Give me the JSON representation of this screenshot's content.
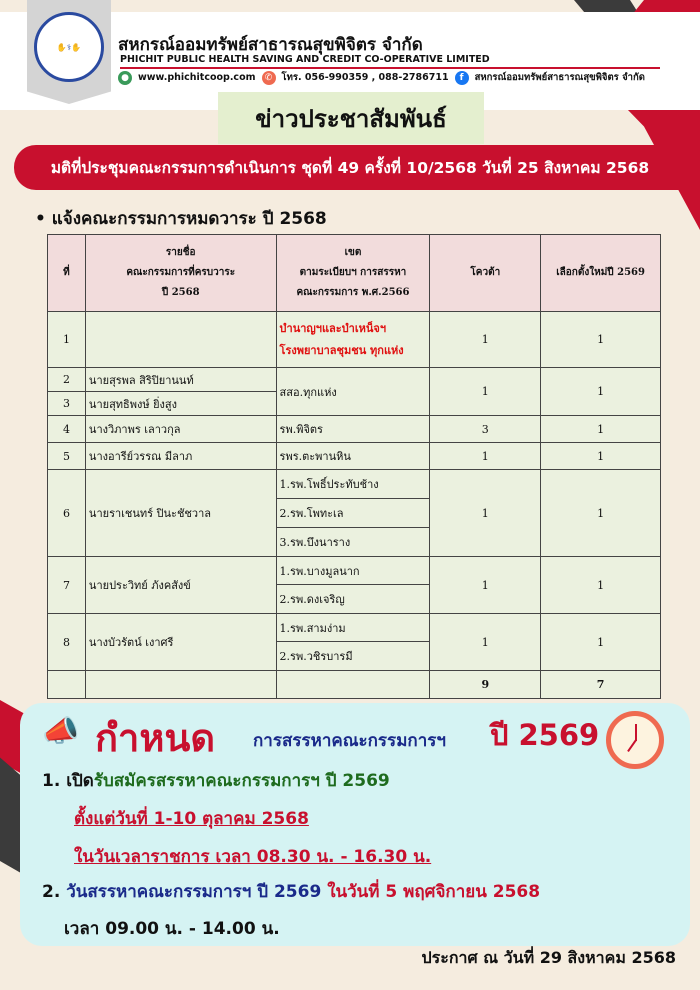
{
  "header": {
    "org_th": "สหกรณ์ออมทรัพย์สาธารณสุขพิจิตร จำกัด",
    "org_en": "PHICHIT PUBLIC HEALTH SAVING AND CREDIT CO-OPERATIVE LIMITED",
    "logo_text": "สหกรณ์ออมทรัพย์ สาธารณสุขพิจิตร จำกัด",
    "website": "www.phichitcoop.com",
    "phone": "โทร. 056-990359 , 088-2786711",
    "facebook": "สหกรณ์ออมทรัพย์สาธารณสุขพิจิตร จำกัด"
  },
  "title": "ข่าวประชาสัมพันธ์",
  "banner": "มติที่ประชุมคณะกรรมการดำเนินการ ชุดที่ 49 ครั้งที่ 10/2568 วันที่ 25 สิงหาคม 2568",
  "bullet": "• แจ้งคณะกรรมการหมดวาระ ปี 2568",
  "table": {
    "headers": [
      "ที่",
      "รายชื่อ\nคณะกรรมการที่ครบวาระ\nปี 2568",
      "เขต\nตามระเบียบฯ การสรรหา\nคณะกรรมการ พ.ศ.2566",
      "โควต้า",
      "เลือกตั้งใหม่ปี 2569"
    ],
    "rows": [
      {
        "no": "1",
        "names": [
          ""
        ],
        "zones": [
          "บำนาญฯและบำเหน็จฯ",
          "โรงพยาบาลชุมชน ทุกแห่ง"
        ],
        "quota": "1",
        "elect": "1"
      },
      {
        "no": [
          "2",
          "3"
        ],
        "names": [
          "นายสุรพล สิริปิยานนท์",
          "นายสุทธิพงษ์ ยิ่งสูง"
        ],
        "zones": [
          "สสอ.ทุกแห่ง"
        ],
        "quota": "1",
        "elect": "1"
      },
      {
        "no": "4",
        "names": [
          "นางวิภาพร เลาวกุล"
        ],
        "zones": [
          "รพ.พิจิตร"
        ],
        "quota": "3",
        "elect": "1"
      },
      {
        "no": "5",
        "names": [
          "นางอารีย์วรรณ มีลาภ"
        ],
        "zones": [
          "รพร.ตะพานหิน"
        ],
        "quota": "1",
        "elect": "1"
      },
      {
        "no": "6",
        "names": [
          "นายราเชนทร์ ปินะชัชวาล"
        ],
        "zones": [
          "1.รพ.โพธิ์ประทับช้าง",
          "2.รพ.โพทะเล",
          "3.รพ.บึงนาราง"
        ],
        "quota": "1",
        "elect": "1"
      },
      {
        "no": "7",
        "names": [
          "นายประวิทย์ ภังคสังข์"
        ],
        "zones": [
          "1.รพ.บางมูลนาก",
          "2.รพ.ดงเจริญ"
        ],
        "quota": "1",
        "elect": "1"
      },
      {
        "no": "8",
        "names": [
          "นางบัวรัตน์ เงาศรี"
        ],
        "zones": [
          "1.รพ.สามง่าม",
          "2.รพ.วชิรบารมี"
        ],
        "quota": "1",
        "elect": "1"
      }
    ],
    "total": {
      "quota": "9",
      "elect": "7"
    }
  },
  "schedule": {
    "heading": "กำหนด",
    "heading_sub": "การสรรหาคณะกรรมการฯ",
    "heading_year": "ปี 2569",
    "item1_num": "1. เปิด",
    "item1_text": "รับสมัครสรรหาคณะกรรมการฯ ปี 2569",
    "item1_date": "ตั้งแต่วันที่ 1-10 ตุลาคม 2568",
    "item1_time": "ในวันเวลาราชการ เวลา 08.30 น. - 16.30 น.",
    "item2_num": "2.",
    "item2_text": "วันสรรหาคณะกรรมการฯ ปี 2569",
    "item2_date": "ในวันที่ 5 พฤศจิกายน 2568",
    "item2_time": "เวลา 09.00 น. - 14.00 น."
  },
  "footer": "ประกาศ ณ วันที่ 29 สิงหาคม 2568",
  "colors": {
    "red": "#c8102e",
    "green": "#1e6b1e",
    "blue": "#1a2a8a",
    "card": "#d5f3f3"
  }
}
